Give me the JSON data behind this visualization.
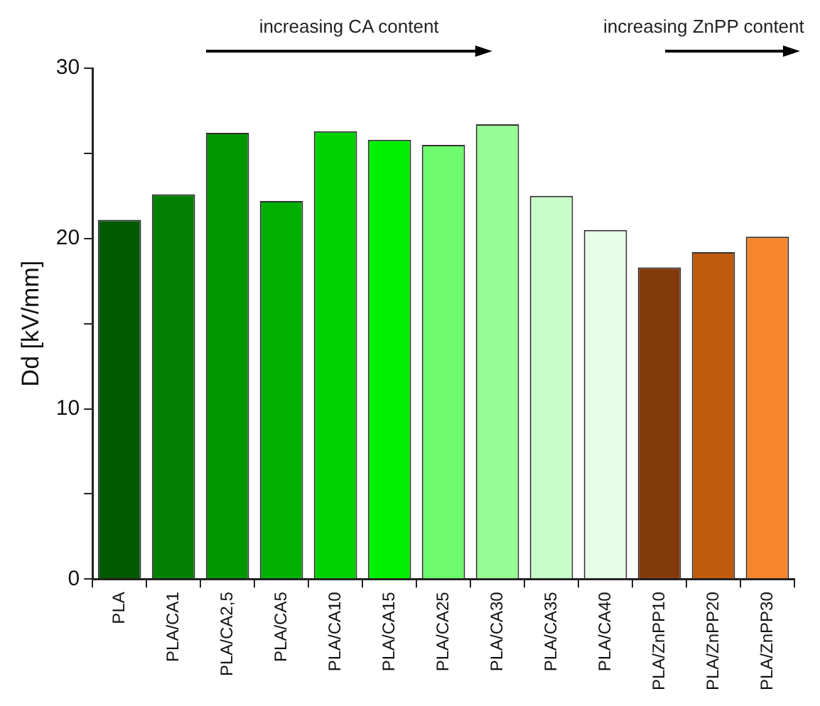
{
  "chart_data": {
    "type": "bar",
    "ylabel": "Dd [kV/mm]",
    "categories": [
      "PLA",
      "PLA/CA1",
      "PLA/CA2,5",
      "PLA/CA5",
      "PLA/CA10",
      "PLA/CA15",
      "PLA/CA25",
      "PLA/CA30",
      "PLA/CA35",
      "PLA/CA40",
      "PLA/ZnPP10",
      "PLA/ZnPP20",
      "PLA/ZnPP30"
    ],
    "values": [
      21.1,
      22.6,
      26.2,
      22.2,
      26.3,
      25.8,
      25.5,
      26.7,
      22.5,
      20.5,
      18.3,
      19.2,
      20.1
    ],
    "colors": [
      "#005a00",
      "#007f00",
      "#009600",
      "#00b000",
      "#00d200",
      "#00f000",
      "#6efc6e",
      "#96fc96",
      "#c8fcc8",
      "#e6fde6",
      "#833a0b",
      "#c05a0c",
      "#f5862e"
    ],
    "ylim": [
      0,
      30
    ],
    "yticks": [
      0,
      {
        "value": 5,
        "label": null
      },
      10,
      {
        "value": 15,
        "label": null
      },
      20,
      {
        "value": 25,
        "label": null
      },
      30
    ],
    "annotations": [
      "increasing CA content",
      "increasing ZnPP content"
    ],
    "grid": false,
    "legend": false
  }
}
